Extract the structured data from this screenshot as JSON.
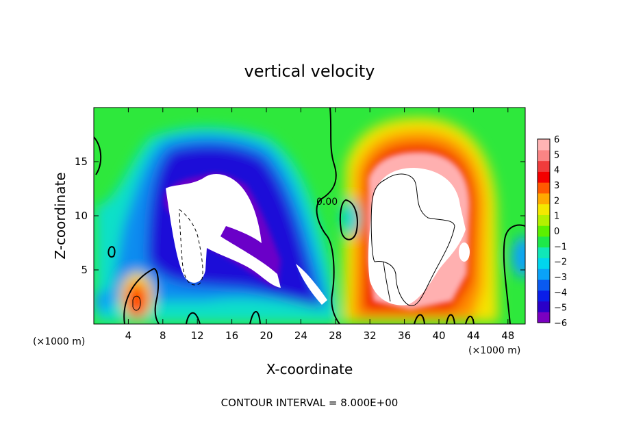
{
  "chart_data": {
    "type": "heatmap",
    "title": "vertical velocity",
    "xlabel": "X-coordinate",
    "ylabel": "Z-coordinate",
    "x_unit_label_left": "(×1000 m)",
    "x_unit_label_right": "(×1000 m)",
    "footer": "CONTOUR INTERVAL = 8.000E+00",
    "contour_label": "0.00",
    "xlim": [
      0,
      50
    ],
    "ylim": [
      0,
      20
    ],
    "x_ticks": [
      4,
      8,
      12,
      16,
      20,
      24,
      28,
      32,
      36,
      40,
      44,
      48
    ],
    "y_ticks": [
      5,
      10,
      15
    ],
    "colorbar": {
      "min": -6,
      "max": 6,
      "ticks": [
        6,
        5,
        4,
        3,
        2,
        1,
        0,
        -1,
        -2,
        -3,
        -4,
        -5,
        -6
      ],
      "colors": [
        "#7a00c0",
        "#2a00c8",
        "#0a1ee8",
        "#0a5af0",
        "#0aa2f8",
        "#00d6ee",
        "#10e7b8",
        "#1ee84a",
        "#5cf000",
        "#b4f000",
        "#f4e800",
        "#ffaa00",
        "#ff5a00",
        "#f40000",
        "#f03c3c",
        "#fa8484",
        "#ffb4b4"
      ]
    },
    "features": [
      {
        "kind": "downdraft",
        "x_range": [
          9,
          28
        ],
        "z_range": [
          2,
          14
        ],
        "peak": -8
      },
      {
        "kind": "updraft",
        "x_range": [
          30,
          46
        ],
        "z_range": [
          1,
          16
        ],
        "peak": 10
      },
      {
        "kind": "updraft",
        "x_range": [
          4,
          6
        ],
        "z_range": [
          1,
          5
        ],
        "peak": 5
      }
    ]
  }
}
